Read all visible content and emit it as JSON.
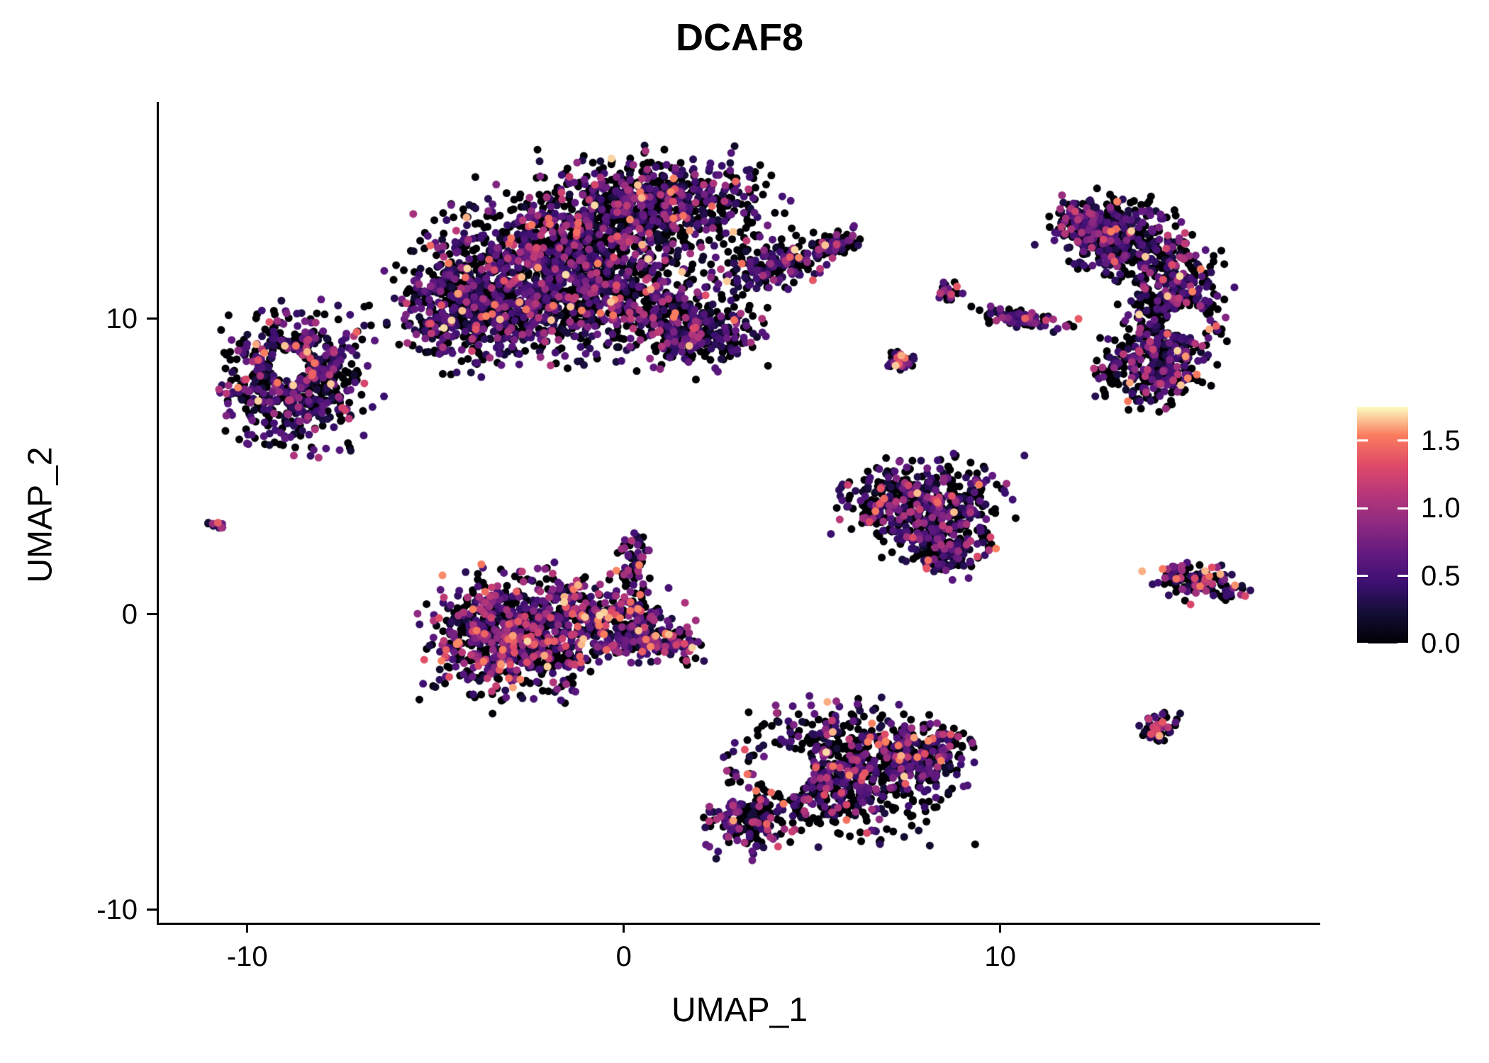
{
  "chart_data": {
    "type": "scatter",
    "title": "DCAF8",
    "xlabel": "UMAP_1",
    "ylabel": "UMAP_2",
    "xlim": [
      -12.35,
      18.5
    ],
    "ylim": [
      -10.44,
      17.33
    ],
    "x_ticks": [
      -10,
      0,
      10
    ],
    "x_tick_labels": [
      "-10",
      "0",
      "10"
    ],
    "y_ticks": [
      -10,
      0,
      10
    ],
    "y_tick_labels": [
      "-10",
      "0",
      "10"
    ],
    "grid": false,
    "background_color": "#ffffff",
    "axis_color": "#000000",
    "point_radius_px": 5.5,
    "legend": {
      "domain": [
        0,
        1.75
      ],
      "values": [
        0,
        0.5,
        1.0,
        1.5
      ],
      "labels": [
        "0.0",
        "0.5",
        "1.0",
        "1.5"
      ],
      "position": "right"
    },
    "colormap": {
      "name": "magma",
      "stops": [
        {
          "pos": 0.0,
          "color": "#000004"
        },
        {
          "pos": 0.13,
          "color": "#140e36"
        },
        {
          "pos": 0.25,
          "color": "#3b0f70"
        },
        {
          "pos": 0.38,
          "color": "#641a80"
        },
        {
          "pos": 0.5,
          "color": "#8c2981"
        },
        {
          "pos": 0.63,
          "color": "#b73779"
        },
        {
          "pos": 0.75,
          "color": "#de4968"
        },
        {
          "pos": 0.88,
          "color": "#fa7d5e"
        },
        {
          "pos": 1.0,
          "color": "#fcfdbf"
        }
      ]
    },
    "expression_levels": {
      "zero": 0,
      "low": [
        0.15,
        0.65
      ],
      "mid": [
        0.65,
        1.15
      ],
      "high": [
        1.15,
        1.7
      ]
    },
    "clusters": [
      {
        "name": "top-center-large",
        "mix": [
          0.52,
          0.34,
          0.11,
          0.03
        ],
        "blobs": [
          {
            "x": -1.5,
            "y": 11.5,
            "rx": 3.3,
            "ry": 2.7,
            "n": 1500
          },
          {
            "x": 0.9,
            "y": 13.9,
            "rx": 2.9,
            "ry": 1.5,
            "n": 650
          },
          {
            "x": -4.2,
            "y": 10.4,
            "rx": 1.9,
            "ry": 1.8,
            "n": 450
          },
          {
            "x": 1.9,
            "y": 9.6,
            "rx": 1.7,
            "ry": 1.2,
            "n": 300
          },
          {
            "x": 3.9,
            "y": 11.8,
            "rx": 1.5,
            "ry": 0.8,
            "n": 170,
            "rot": 20
          },
          {
            "x": 5.5,
            "y": 12.4,
            "rx": 0.7,
            "ry": 0.45,
            "n": 60,
            "rot": 25
          }
        ]
      },
      {
        "name": "left",
        "mix": [
          0.45,
          0.37,
          0.13,
          0.05
        ],
        "blobs": [
          {
            "x": -8.8,
            "y": 8.0,
            "rx": 1.9,
            "ry": 2.1,
            "n": 680
          }
        ],
        "holes": [
          {
            "x": -8.9,
            "y": 8.4,
            "r": 0.5
          }
        ]
      },
      {
        "name": "left-tiny",
        "mix": [
          0.3,
          0.4,
          0.2,
          0.1
        ],
        "blobs": [
          {
            "x": -10.9,
            "y": 3.0,
            "rx": 0.28,
            "ry": 0.22,
            "n": 10
          }
        ]
      },
      {
        "name": "center-left",
        "mix": [
          0.4,
          0.33,
          0.18,
          0.09
        ],
        "blobs": [
          {
            "x": -2.9,
            "y": -0.7,
            "rx": 2.3,
            "ry": 2.0,
            "n": 820
          },
          {
            "x": -0.3,
            "y": -0.2,
            "rx": 1.7,
            "ry": 1.2,
            "n": 260
          },
          {
            "x": 1.0,
            "y": -1.0,
            "rx": 1.1,
            "ry": 0.7,
            "n": 120,
            "rot": -15
          },
          {
            "x": 0.3,
            "y": 1.9,
            "rx": 0.5,
            "ry": 0.9,
            "n": 55
          }
        ]
      },
      {
        "name": "center-right-mid",
        "mix": [
          0.48,
          0.36,
          0.12,
          0.04
        ],
        "blobs": [
          {
            "x": 8.0,
            "y": 3.7,
            "rx": 2.1,
            "ry": 1.5,
            "n": 520
          },
          {
            "x": 8.5,
            "y": 2.1,
            "rx": 1.0,
            "ry": 0.8,
            "n": 130
          }
        ]
      },
      {
        "name": "bottom-center",
        "mix": [
          0.5,
          0.34,
          0.12,
          0.04
        ],
        "blobs": [
          {
            "x": 5.7,
            "y": -5.3,
            "rx": 2.7,
            "ry": 2.1,
            "n": 760
          },
          {
            "x": 7.9,
            "y": -4.7,
            "rx": 1.2,
            "ry": 1.0,
            "n": 190
          },
          {
            "x": 3.4,
            "y": -7.1,
            "rx": 1.3,
            "ry": 0.9,
            "n": 150,
            "rot": 15
          }
        ],
        "holes": [
          {
            "x": 4.3,
            "y": -5.3,
            "r": 0.75
          }
        ]
      },
      {
        "name": "right-large",
        "mix": [
          0.5,
          0.36,
          0.11,
          0.03
        ],
        "blobs": [
          {
            "x": 13.2,
            "y": 12.7,
            "rx": 1.7,
            "ry": 1.3,
            "n": 360,
            "rot": -20
          },
          {
            "x": 14.6,
            "y": 10.6,
            "rx": 1.3,
            "ry": 1.9,
            "n": 420
          },
          {
            "x": 14.1,
            "y": 8.3,
            "rx": 1.5,
            "ry": 1.2,
            "n": 300
          },
          {
            "x": 12.2,
            "y": 13.3,
            "rx": 0.9,
            "ry": 0.6,
            "n": 110,
            "rot": -25
          }
        ],
        "holes": [
          {
            "x": 15.0,
            "y": 9.9,
            "r": 0.55
          }
        ]
      },
      {
        "name": "mid-streaks",
        "mix": [
          0.35,
          0.4,
          0.18,
          0.07
        ],
        "blobs": [
          {
            "x": 8.6,
            "y": 10.9,
            "rx": 0.38,
            "ry": 0.3,
            "n": 26
          },
          {
            "x": 10.6,
            "y": 10.0,
            "rx": 1.25,
            "ry": 0.28,
            "n": 90,
            "rot": -12
          },
          {
            "x": 7.3,
            "y": 8.6,
            "rx": 0.55,
            "ry": 0.35,
            "n": 38,
            "rot": -15
          }
        ]
      },
      {
        "name": "right-wedge",
        "mix": [
          0.38,
          0.34,
          0.18,
          0.1
        ],
        "blobs": [
          {
            "x": 15.3,
            "y": 1.1,
            "rx": 1.25,
            "ry": 0.6,
            "n": 120,
            "rot": -18
          }
        ]
      },
      {
        "name": "small-bottom-right",
        "mix": [
          0.33,
          0.35,
          0.21,
          0.11
        ],
        "blobs": [
          {
            "x": 14.2,
            "y": -3.8,
            "rx": 0.55,
            "ry": 0.5,
            "n": 48
          }
        ]
      }
    ]
  }
}
